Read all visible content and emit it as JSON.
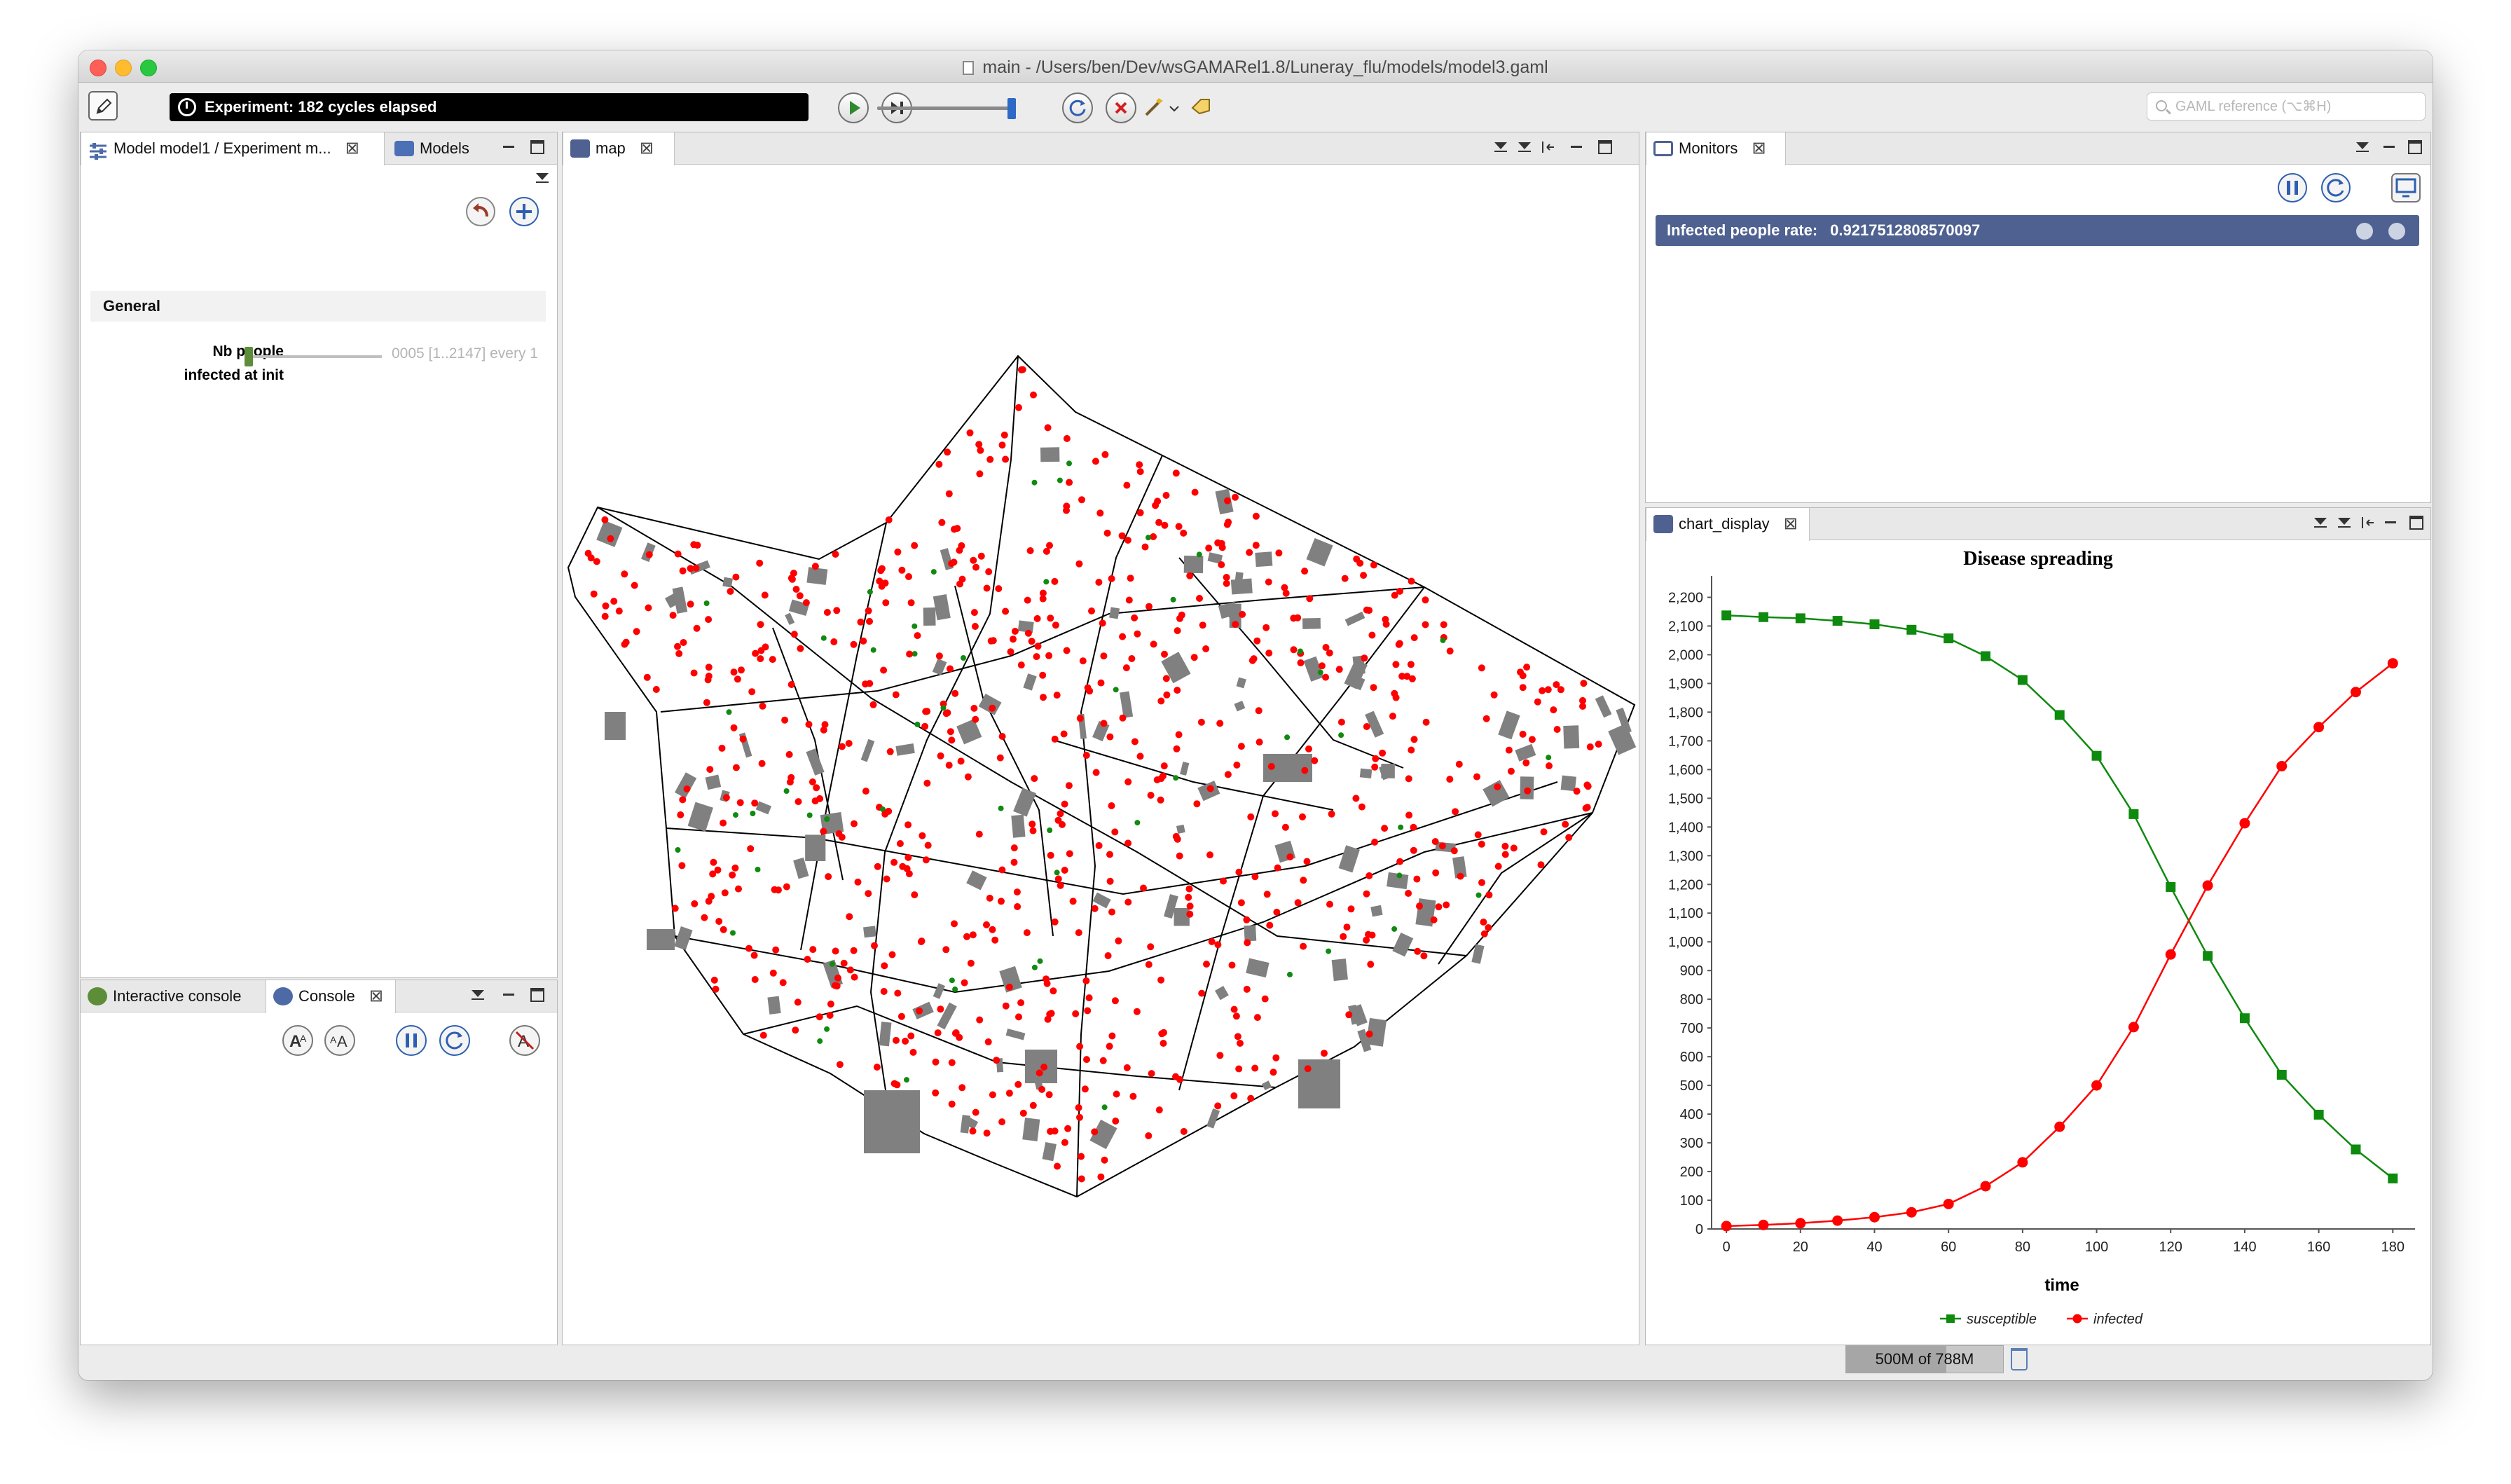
{
  "window": {
    "title": "main - /Users/ben/Dev/wsGAMARel1.8/Luneray_flu/models/model3.gaml"
  },
  "toolbar": {
    "experiment_status": "Experiment: 182 cycles elapsed",
    "search_placeholder": "GAML reference (⌥⌘H)"
  },
  "parameters_panel": {
    "tab_experiment": "Model model1 / Experiment m...",
    "tab_models": "Models",
    "section_title": "General",
    "param_label_line1": "Nb people",
    "param_label_line2": "infected at init",
    "param_value": "0005 [1..2147] every 1"
  },
  "console_panel": {
    "tab_interactive": "Interactive console",
    "tab_console": "Console"
  },
  "map_panel": {
    "tab_label": "map"
  },
  "monitors_panel": {
    "tab_label": "Monitors",
    "monitor_name": "Infected people rate:",
    "monitor_value": "0.9217512808570097"
  },
  "chart_panel": {
    "tab_label": "chart_display"
  },
  "chart_data": {
    "type": "line",
    "title": "Disease spreading",
    "xlabel": "time",
    "ylabel": "",
    "x": [
      0,
      10,
      20,
      30,
      40,
      50,
      60,
      70,
      80,
      90,
      100,
      110,
      120,
      130,
      140,
      150,
      160,
      170,
      180
    ],
    "xticks": [
      0,
      20,
      40,
      60,
      80,
      100,
      120,
      140,
      160,
      180
    ],
    "yticks": [
      0,
      100,
      200,
      300,
      400,
      500,
      600,
      700,
      800,
      900,
      1000,
      1100,
      1200,
      1300,
      1400,
      1500,
      1600,
      1700,
      1800,
      1900,
      2000,
      2100,
      2200
    ],
    "ytick_labels": [
      "0",
      "100",
      "200",
      "300",
      "400",
      "500",
      "600",
      "700",
      "800",
      "900",
      "1,000",
      "1,100",
      "1,200",
      "1,300",
      "1,400",
      "1,500",
      "1,600",
      "1,700",
      "1,800",
      "1,900",
      "2,000",
      "2,100",
      "2,200"
    ],
    "xlim": [
      -4,
      186
    ],
    "ylim": [
      0,
      2250
    ],
    "legend_position": "bottom",
    "series": [
      {
        "name": "susceptible",
        "color": "#0e8a0e",
        "marker": "square",
        "values": [
          2137,
          2131,
          2127,
          2118,
          2106,
          2087,
          2057,
          1995,
          1912,
          1790,
          1648,
          1445,
          1191,
          951,
          734,
          537,
          398,
          277,
          176
        ]
      },
      {
        "name": "infected",
        "color": "#ff0000",
        "marker": "circle",
        "values": [
          10,
          14,
          20,
          29,
          41,
          58,
          87,
          149,
          232,
          356,
          500,
          703,
          956,
          1196,
          1413,
          1612,
          1748,
          1870,
          1970
        ]
      }
    ]
  },
  "statusbar": {
    "memory": "500M of 788M"
  }
}
